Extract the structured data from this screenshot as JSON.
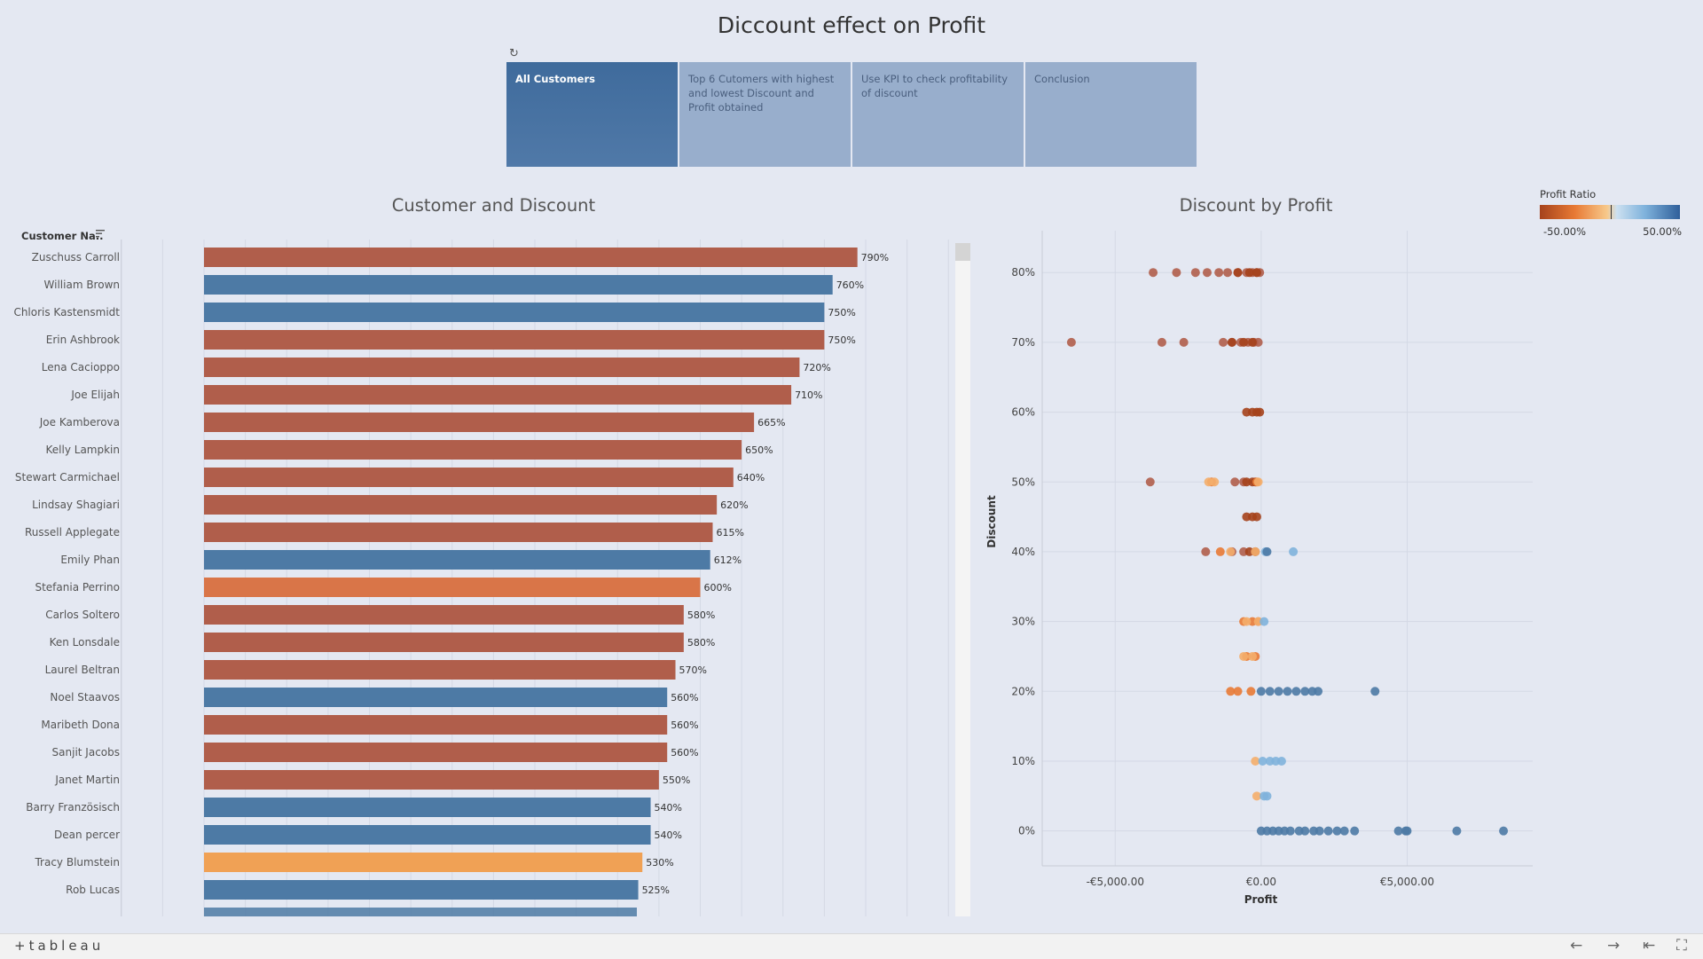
{
  "title": "Diccount effect on Profit",
  "story_points": [
    {
      "label": "All Customers",
      "active": true
    },
    {
      "label": "Top 6 Cutomers with highest and lowest Discount and Profit obtained",
      "active": false
    },
    {
      "label": "Use KPI to check profitability of discount",
      "active": false
    },
    {
      "label": "Conclusion",
      "active": false
    }
  ],
  "colors": {
    "background": "#e4e8f2",
    "negative": "#b05e4b",
    "blue": "#4d7aa5",
    "orange": "#d97548",
    "light_orange": "#f0a155"
  },
  "legend": {
    "title": "Profit Ratio",
    "min_label": "-50.00%",
    "max_label": "50.00%"
  },
  "footer": {
    "logo": "+tableau",
    "icons": [
      "undo-icon",
      "redo-icon",
      "revert-icon",
      "fullscreen-icon"
    ]
  },
  "chart_data": [
    {
      "type": "bar",
      "title": "Customer and Discount",
      "category_header": "Customer Na..",
      "orientation": "horizontal",
      "xlim": [
        -100,
        900
      ],
      "bars": [
        {
          "name": "Zuschuss Carroll",
          "value": 790,
          "label": "790%",
          "color": "#b05e4b"
        },
        {
          "name": "William Brown",
          "value": 760,
          "label": "760%",
          "color": "#4d7aa5"
        },
        {
          "name": "Chloris Kastensmidt",
          "value": 750,
          "label": "750%",
          "color": "#4d7aa5"
        },
        {
          "name": "Erin Ashbrook",
          "value": 750,
          "label": "750%",
          "color": "#b05e4b"
        },
        {
          "name": "Lena Cacioppo",
          "value": 720,
          "label": "720%",
          "color": "#b05e4b"
        },
        {
          "name": "Joe Elijah",
          "value": 710,
          "label": "710%",
          "color": "#b05e4b"
        },
        {
          "name": "Joe Kamberova",
          "value": 665,
          "label": "665%",
          "color": "#b05e4b"
        },
        {
          "name": "Kelly Lampkin",
          "value": 650,
          "label": "650%",
          "color": "#b05e4b"
        },
        {
          "name": "Stewart Carmichael",
          "value": 640,
          "label": "640%",
          "color": "#b05e4b"
        },
        {
          "name": "Lindsay Shagiari",
          "value": 620,
          "label": "620%",
          "color": "#b05e4b"
        },
        {
          "name": "Russell Applegate",
          "value": 615,
          "label": "615%",
          "color": "#b05e4b"
        },
        {
          "name": "Emily Phan",
          "value": 612,
          "label": "612%",
          "color": "#4d7aa5"
        },
        {
          "name": "Stefania Perrino",
          "value": 600,
          "label": "600%",
          "color": "#d97548"
        },
        {
          "name": "Carlos Soltero",
          "value": 580,
          "label": "580%",
          "color": "#b05e4b"
        },
        {
          "name": "Ken Lonsdale",
          "value": 580,
          "label": "580%",
          "color": "#b05e4b"
        },
        {
          "name": "Laurel Beltran",
          "value": 570,
          "label": "570%",
          "color": "#b05e4b"
        },
        {
          "name": "Noel Staavos",
          "value": 560,
          "label": "560%",
          "color": "#4d7aa5"
        },
        {
          "name": "Maribeth Dona",
          "value": 560,
          "label": "560%",
          "color": "#b05e4b"
        },
        {
          "name": "Sanjit Jacobs",
          "value": 560,
          "label": "560%",
          "color": "#b05e4b"
        },
        {
          "name": "Janet Martin",
          "value": 550,
          "label": "550%",
          "color": "#b05e4b"
        },
        {
          "name": "Barry Französisch",
          "value": 540,
          "label": "540%",
          "color": "#4d7aa5"
        },
        {
          "name": "Dean percer",
          "value": 540,
          "label": "540%",
          "color": "#4d7aa5"
        },
        {
          "name": "Tracy Blumstein",
          "value": 530,
          "label": "530%",
          "color": "#f0a155"
        },
        {
          "name": "Rob Lucas",
          "value": 525,
          "label": "525%",
          "color": "#4d7aa5"
        }
      ]
    },
    {
      "type": "scatter",
      "title": "Discount by Profit",
      "xlabel": "Profit",
      "ylabel": "Discount",
      "xlim": [
        -7500,
        9300
      ],
      "ylim": [
        -5,
        86
      ],
      "xticks": [
        {
          "value": -5000,
          "label": "-€5,000.00"
        },
        {
          "value": 0,
          "label": "€0.00"
        },
        {
          "value": 5000,
          "label": "€5,000.00"
        }
      ],
      "yticks": [
        {
          "value": 0,
          "label": "0%"
        },
        {
          "value": 10,
          "label": "10%"
        },
        {
          "value": 20,
          "label": "20%"
        },
        {
          "value": 30,
          "label": "30%"
        },
        {
          "value": 40,
          "label": "40%"
        },
        {
          "value": 50,
          "label": "50%"
        },
        {
          "value": 60,
          "label": "60%"
        },
        {
          "value": 70,
          "label": "70%"
        },
        {
          "value": 80,
          "label": "80%"
        }
      ],
      "series": [
        {
          "color": "#b05e4b",
          "points": [
            [
              -3700,
              80
            ],
            [
              -2900,
              80
            ],
            [
              -2250,
              80
            ],
            [
              -1850,
              80
            ],
            [
              -1450,
              80
            ],
            [
              -1150,
              80
            ],
            [
              -800,
              80
            ],
            [
              -500,
              80
            ],
            [
              -300,
              80
            ],
            [
              -150,
              80
            ],
            [
              -50,
              80
            ],
            [
              -6500,
              70
            ],
            [
              -3400,
              70
            ],
            [
              -2650,
              70
            ],
            [
              -1300,
              70
            ],
            [
              -1000,
              70
            ],
            [
              -700,
              70
            ],
            [
              -450,
              70
            ],
            [
              -250,
              70
            ],
            [
              -100,
              70
            ],
            [
              -3800,
              50
            ],
            [
              -900,
              50
            ],
            [
              -600,
              50
            ],
            [
              -1900,
              40
            ],
            [
              -1000,
              40
            ],
            [
              -600,
              40
            ]
          ]
        },
        {
          "color": "#a5421c",
          "points": [
            [
              -800,
              80
            ],
            [
              -400,
              80
            ],
            [
              -150,
              80
            ],
            [
              -1000,
              70
            ],
            [
              -600,
              70
            ],
            [
              -300,
              70
            ],
            [
              -500,
              60
            ],
            [
              -300,
              60
            ],
            [
              -150,
              60
            ],
            [
              -50,
              60
            ],
            [
              -500,
              50
            ],
            [
              -300,
              50
            ],
            [
              -200,
              50
            ],
            [
              -500,
              45
            ],
            [
              -300,
              45
            ],
            [
              -150,
              45
            ],
            [
              -400,
              40
            ],
            [
              -200,
              40
            ]
          ]
        },
        {
          "color": "#e87a35",
          "points": [
            [
              -1700,
              50
            ],
            [
              -150,
              50
            ],
            [
              -1400,
              40
            ],
            [
              -600,
              30
            ],
            [
              -300,
              30
            ],
            [
              -100,
              30
            ],
            [
              -500,
              25
            ],
            [
              -200,
              25
            ],
            [
              -1050,
              20
            ],
            [
              -800,
              20
            ],
            [
              -350,
              20
            ]
          ]
        },
        {
          "color": "#f4ae6c",
          "points": [
            [
              -1800,
              50
            ],
            [
              -1600,
              50
            ],
            [
              -100,
              50
            ],
            [
              -1050,
              40
            ],
            [
              -200,
              40
            ],
            [
              -500,
              30
            ],
            [
              -100,
              30
            ],
            [
              -600,
              25
            ],
            [
              -300,
              25
            ],
            [
              -200,
              10
            ],
            [
              -150,
              5
            ]
          ]
        },
        {
          "color": "#7fb2dc",
          "points": [
            [
              1100,
              40
            ],
            [
              150,
              40
            ],
            [
              100,
              30
            ],
            [
              100,
              5
            ],
            [
              50,
              10
            ],
            [
              300,
              10
            ],
            [
              500,
              10
            ],
            [
              700,
              10
            ],
            [
              200,
              5
            ]
          ]
        },
        {
          "color": "#4d7aa5",
          "points": [
            [
              200,
              40
            ],
            [
              0,
              20
            ],
            [
              300,
              20
            ],
            [
              600,
              20
            ],
            [
              900,
              20
            ],
            [
              1200,
              20
            ],
            [
              1500,
              20
            ],
            [
              1750,
              20
            ],
            [
              1950,
              20
            ],
            [
              3900,
              20
            ],
            [
              0,
              0
            ],
            [
              200,
              0
            ],
            [
              400,
              0
            ],
            [
              600,
              0
            ],
            [
              800,
              0
            ],
            [
              1000,
              0
            ],
            [
              1300,
              0
            ],
            [
              1500,
              0
            ],
            [
              1800,
              0
            ],
            [
              2000,
              0
            ],
            [
              2300,
              0
            ],
            [
              2600,
              0
            ],
            [
              2850,
              0
            ],
            [
              3200,
              0
            ],
            [
              4700,
              0
            ],
            [
              4950,
              0
            ],
            [
              5000,
              0
            ],
            [
              6700,
              0
            ],
            [
              8300,
              0
            ]
          ]
        }
      ]
    }
  ]
}
